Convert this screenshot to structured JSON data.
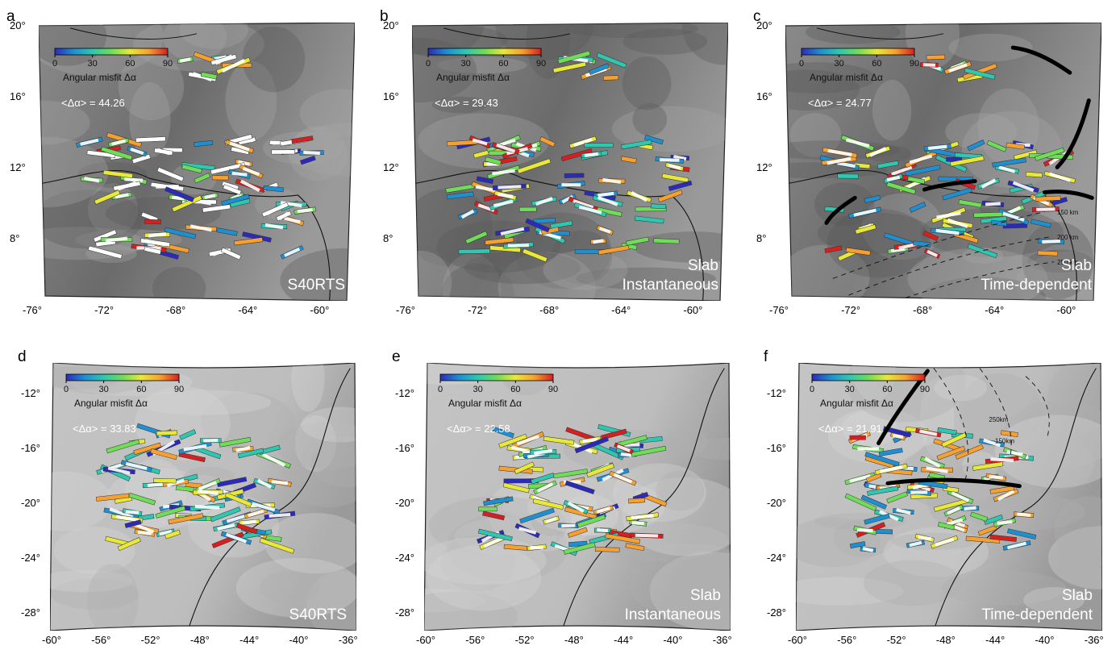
{
  "colorbar": {
    "tick_labels": [
      "0",
      "30",
      "60",
      "90"
    ],
    "label": "Angular misfit Δα",
    "colors": [
      "#2b2bb8",
      "#1f8fd0",
      "#2fc7b0",
      "#6fdc5a",
      "#e8e83a",
      "#f5a030",
      "#d42020"
    ]
  },
  "panels": [
    {
      "letter": "a",
      "mean_label": "<Δα> = 44.26",
      "model_lines": [
        "S40RTS"
      ]
    },
    {
      "letter": "b",
      "mean_label": "<Δα> = 29.43",
      "model_lines": [
        "Slab",
        "Instantaneous"
      ]
    },
    {
      "letter": "c",
      "mean_label": "<Δα> = 24.77",
      "model_lines": [
        "Slab",
        "Time-dependent"
      ],
      "contour_labels": [
        "150 km",
        "200 km",
        "250 km"
      ]
    },
    {
      "letter": "d",
      "mean_label": "<Δα> = 33.83",
      "model_lines": [
        "S40RTS"
      ]
    },
    {
      "letter": "e",
      "mean_label": "<Δα> = 22.58",
      "model_lines": [
        "Slab",
        "Instantaneous"
      ]
    },
    {
      "letter": "f",
      "mean_label": "<Δα> = 21.91",
      "model_lines": [
        "Slab",
        "Time-dependent"
      ],
      "contour_labels": [
        "250km",
        "150km"
      ]
    }
  ],
  "top_axes": {
    "lat_ticks": [
      "20°",
      "16°",
      "12°",
      "8°"
    ],
    "lon_ticks": [
      "-76°",
      "-72°",
      "-68°",
      "-64°",
      "-60°"
    ]
  },
  "bottom_axes": {
    "lat_ticks": [
      "-12°",
      "-16°",
      "-20°",
      "-24°",
      "-28°"
    ],
    "lon_ticks": [
      "-60°",
      "-56°",
      "-52°",
      "-48°",
      "-44°",
      "-40°",
      "-36°"
    ]
  }
}
